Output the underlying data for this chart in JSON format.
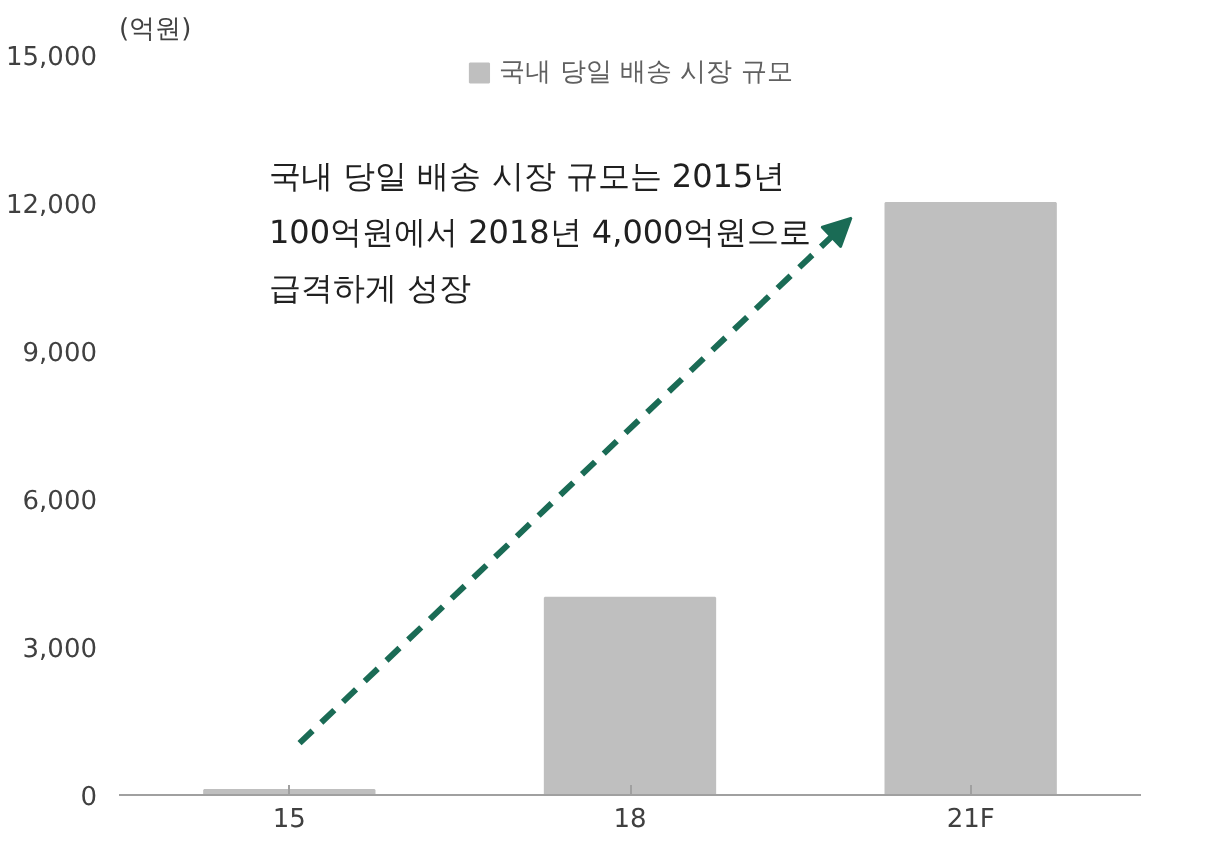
{
  "chart_data": {
    "type": "bar",
    "ylabel": "(억원)",
    "categories": [
      "15",
      "18",
      "21F"
    ],
    "series": [
      {
        "name": "국내 당일 배송 시장 규모",
        "color": "#bfbfbf",
        "values": [
          100,
          4000,
          12000
        ]
      }
    ],
    "ylim": [
      0,
      15000
    ],
    "yticks": [
      0,
      {
        "value": 3000,
        "label": "3,000"
      },
      {
        "value": 6000,
        "label": "6,000"
      },
      {
        "value": 9000,
        "label": "9,000"
      },
      {
        "value": 12000,
        "label": "12,000"
      },
      {
        "value": 15000,
        "label": "15,000"
      }
    ],
    "grid": false,
    "legend": "top",
    "annotations": [
      "국내 당일 배송 시장 규모는 2015년\n100억원에서 2018년 4,000억원으로\n급격하게 성장"
    ]
  }
}
